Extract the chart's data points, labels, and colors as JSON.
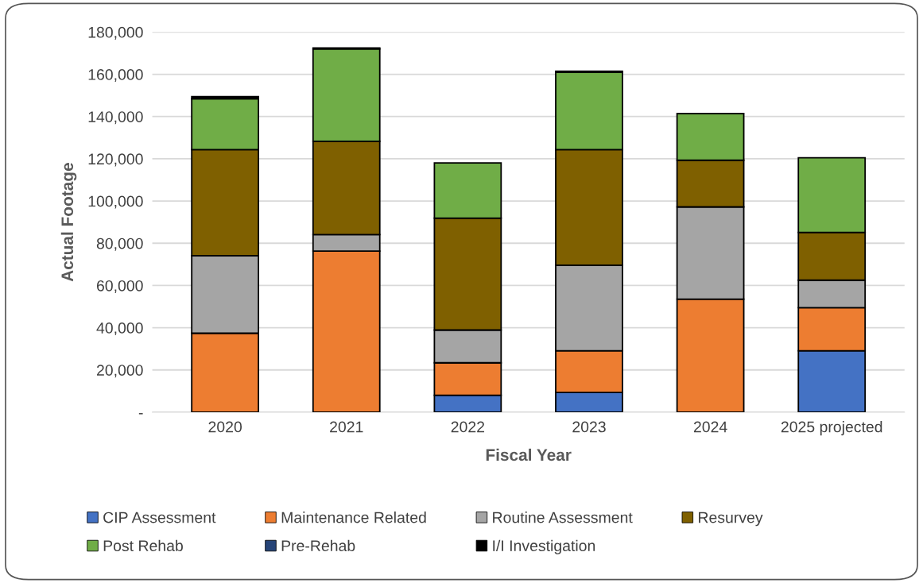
{
  "chart_data": {
    "type": "bar",
    "stacked": true,
    "xlabel": "Fiscal Year",
    "ylabel": "Actual Footage",
    "categories": [
      "2020",
      "2021",
      "2022",
      "2023",
      "2024",
      "2025 projected"
    ],
    "series": [
      {
        "name": "CIP Assessment",
        "color": "#4472c4",
        "values": [
          null,
          null,
          8000,
          9300,
          null,
          29100
        ]
      },
      {
        "name": "Maintenance Related",
        "color": "#ed7d31",
        "values": [
          37400,
          76300,
          15400,
          19800,
          53500,
          20400
        ]
      },
      {
        "name": "Routine Assessment",
        "color": "#a5a5a5",
        "values": [
          36700,
          7800,
          15500,
          40500,
          43700,
          13000
        ]
      },
      {
        "name": "Resurvey",
        "color": "#7f6000",
        "values": [
          50200,
          44200,
          53000,
          54700,
          22100,
          22600
        ]
      },
      {
        "name": "Post Rehab",
        "color": "#70ad47",
        "values": [
          24100,
          43700,
          26100,
          36700,
          22100,
          35400
        ]
      },
      {
        "name": "Pre-Rehab",
        "color": "#264478",
        "values": [
          null,
          null,
          null,
          null,
          null,
          null
        ]
      },
      {
        "name": "I/I Investigation",
        "color": "#000000",
        "values": [
          1000,
          500,
          null,
          500,
          null,
          null
        ]
      }
    ],
    "ylim": [
      0,
      180000
    ],
    "yticks": [
      {
        "value": 0,
        "label": "-"
      },
      {
        "value": 20000,
        "label": "20,000"
      },
      {
        "value": 40000,
        "label": "40,000"
      },
      {
        "value": 60000,
        "label": "60,000"
      },
      {
        "value": 80000,
        "label": "80,000"
      },
      {
        "value": 100000,
        "label": "100,000"
      },
      {
        "value": 120000,
        "label": "120,000"
      },
      {
        "value": 140000,
        "label": "140,000"
      },
      {
        "value": 160000,
        "label": "160,000"
      },
      {
        "value": 180000,
        "label": "180,000"
      }
    ],
    "grid": "y",
    "legend": "bottom"
  }
}
